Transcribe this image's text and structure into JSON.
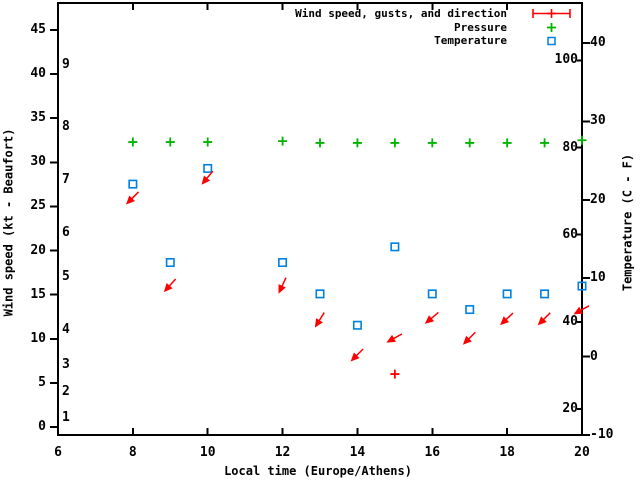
{
  "chart_data": {
    "type": "scatter",
    "x_axis": {
      "title": "Local time (Europe/Athens)",
      "tick_hours": [
        6,
        8,
        10,
        12,
        14,
        16,
        18,
        20
      ],
      "range": [
        6,
        20
      ]
    },
    "left_axis": {
      "title": "Wind speed (kt - Beaufort)",
      "kt_ticks": [
        0,
        5,
        10,
        15,
        20,
        25,
        30,
        35,
        40,
        45
      ],
      "beaufort_scale_labels": [
        {
          "b": "1",
          "at_kt": 1
        },
        {
          "b": "2",
          "at_kt": 4
        },
        {
          "b": "3",
          "at_kt": 7
        },
        {
          "b": "4",
          "at_kt": 11
        },
        {
          "b": "5",
          "at_kt": 17
        },
        {
          "b": "6",
          "at_kt": 22
        },
        {
          "b": "7",
          "at_kt": 28
        },
        {
          "b": "8",
          "at_kt": 34
        },
        {
          "b": "9",
          "at_kt": 41
        }
      ],
      "range_kt": [
        0,
        48
      ]
    },
    "right_axis": {
      "title": "Temperature (C - F)",
      "celsius_ticks": [
        40,
        30,
        20,
        10,
        0,
        -10
      ],
      "fahrenheit_labels": [
        100,
        80,
        60,
        40,
        20
      ],
      "range_c": [
        -10,
        45
      ]
    },
    "legend": [
      {
        "label": "Wind speed, gusts, and direction",
        "marker": "errorbar-plus",
        "color": "#ff0000"
      },
      {
        "label": "Pressure",
        "marker": "plus",
        "color": "#00b400"
      },
      {
        "label": "Temperature",
        "marker": "open-square",
        "color": "#0080e0"
      }
    ],
    "series": {
      "wind": {
        "name": "Wind speed, gusts, and direction",
        "points": [
          {
            "t": 8,
            "speed_kt": 26.0,
            "arrow_toward_deg": 225
          },
          {
            "t": 9,
            "speed_kt": 16.1,
            "arrow_toward_deg": 222
          },
          {
            "t": 10,
            "speed_kt": 28.3,
            "arrow_toward_deg": 220
          },
          {
            "t": 12,
            "speed_kt": 16.1,
            "arrow_toward_deg": 205
          },
          {
            "t": 13,
            "speed_kt": 12.2,
            "arrow_toward_deg": 212
          },
          {
            "t": 14,
            "speed_kt": 8.2,
            "arrow_toward_deg": 225
          },
          {
            "t": 15,
            "speed_kt": 10.1,
            "arrow_toward_deg": 241
          },
          {
            "t": 16,
            "speed_kt": 12.4,
            "arrow_toward_deg": 230
          },
          {
            "t": 17,
            "speed_kt": 10.1,
            "arrow_toward_deg": 225
          },
          {
            "t": 18,
            "speed_kt": 12.3,
            "arrow_toward_deg": 227
          },
          {
            "t": 19,
            "speed_kt": 12.3,
            "arrow_toward_deg": 225
          },
          {
            "t": 20,
            "speed_kt": 13.3,
            "arrow_toward_deg": 241
          }
        ],
        "extra_plus_marker": {
          "t": 15,
          "speed_kt": 6.0
        }
      },
      "pressure": {
        "name": "Pressure",
        "axis_unlabeled": true,
        "points": [
          {
            "t": 8,
            "level_kt": 32.3
          },
          {
            "t": 9,
            "level_kt": 32.3
          },
          {
            "t": 10,
            "level_kt": 32.3
          },
          {
            "t": 12,
            "level_kt": 32.4
          },
          {
            "t": 13,
            "level_kt": 32.2
          },
          {
            "t": 14,
            "level_kt": 32.2
          },
          {
            "t": 15,
            "level_kt": 32.2
          },
          {
            "t": 16,
            "level_kt": 32.2
          },
          {
            "t": 17,
            "level_kt": 32.2
          },
          {
            "t": 18,
            "level_kt": 32.2
          },
          {
            "t": 19,
            "level_kt": 32.2
          },
          {
            "t": 20,
            "level_kt": 32.5
          }
        ]
      },
      "temperature": {
        "name": "Temperature",
        "points": [
          {
            "t": 8,
            "c": 22
          },
          {
            "t": 9,
            "c": 12
          },
          {
            "t": 10,
            "c": 24
          },
          {
            "t": 12,
            "c": 12
          },
          {
            "t": 13,
            "c": 8
          },
          {
            "t": 14,
            "c": 4
          },
          {
            "t": 15,
            "c": 14
          },
          {
            "t": 16,
            "c": 8
          },
          {
            "t": 17,
            "c": 6
          },
          {
            "t": 18,
            "c": 8
          },
          {
            "t": 19,
            "c": 8
          },
          {
            "t": 20,
            "c": 9
          }
        ]
      }
    },
    "colors": {
      "wind": "#ff0000",
      "pressure": "#00b400",
      "temperature": "#0080e0",
      "frame": "#000000",
      "background": "#ffffff"
    }
  }
}
